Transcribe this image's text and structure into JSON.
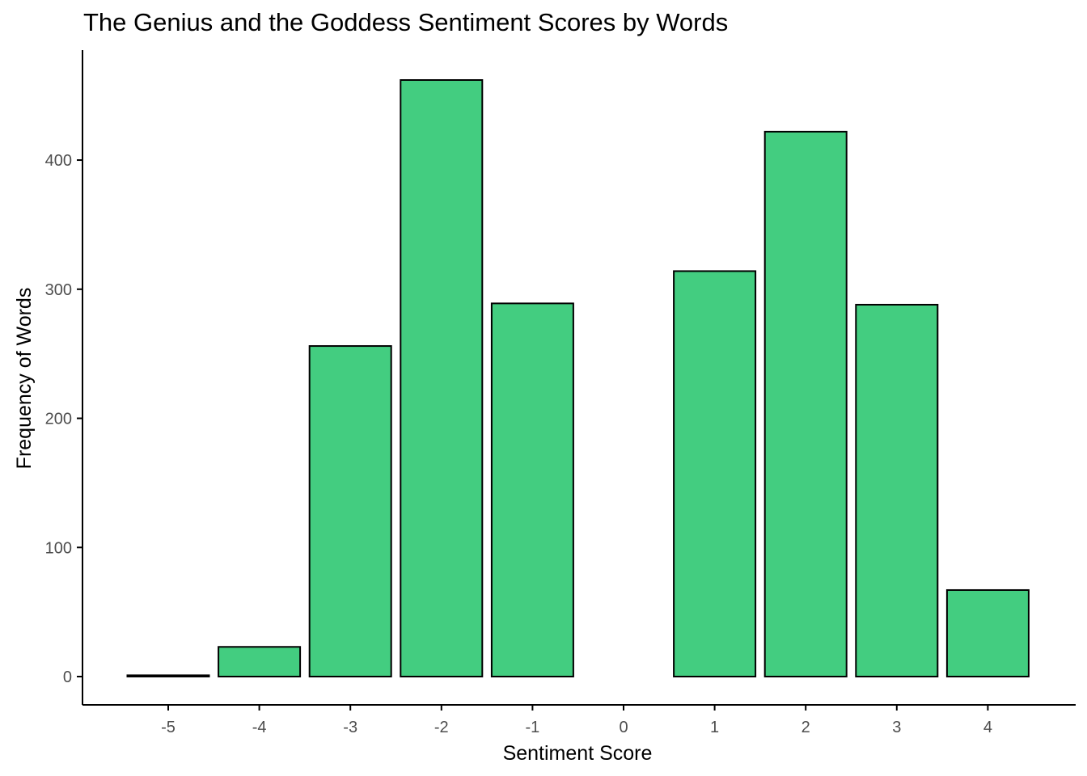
{
  "chart_data": {
    "type": "bar",
    "title": "The Genius and the Goddess Sentiment Scores by Words",
    "xlabel": "Sentiment Score",
    "ylabel": "Frequency of Words",
    "x_ticks": [
      -5,
      -4,
      -3,
      -2,
      -1,
      0,
      1,
      2,
      3,
      4
    ],
    "y_ticks": [
      0,
      100,
      200,
      300,
      400
    ],
    "xlim": [
      -5.5,
      4.5
    ],
    "ylim": [
      0,
      462
    ],
    "categories": [
      -5,
      -4,
      -3,
      -2,
      -1,
      1,
      2,
      3,
      4
    ],
    "values": [
      1,
      23,
      256,
      462,
      289,
      314,
      422,
      288,
      67
    ],
    "grid": false,
    "colors": {
      "bar_fill": "#43CD80",
      "bar_stroke": "#000000",
      "axis": "#000000",
      "tick_label": "#4d4d4d"
    }
  }
}
